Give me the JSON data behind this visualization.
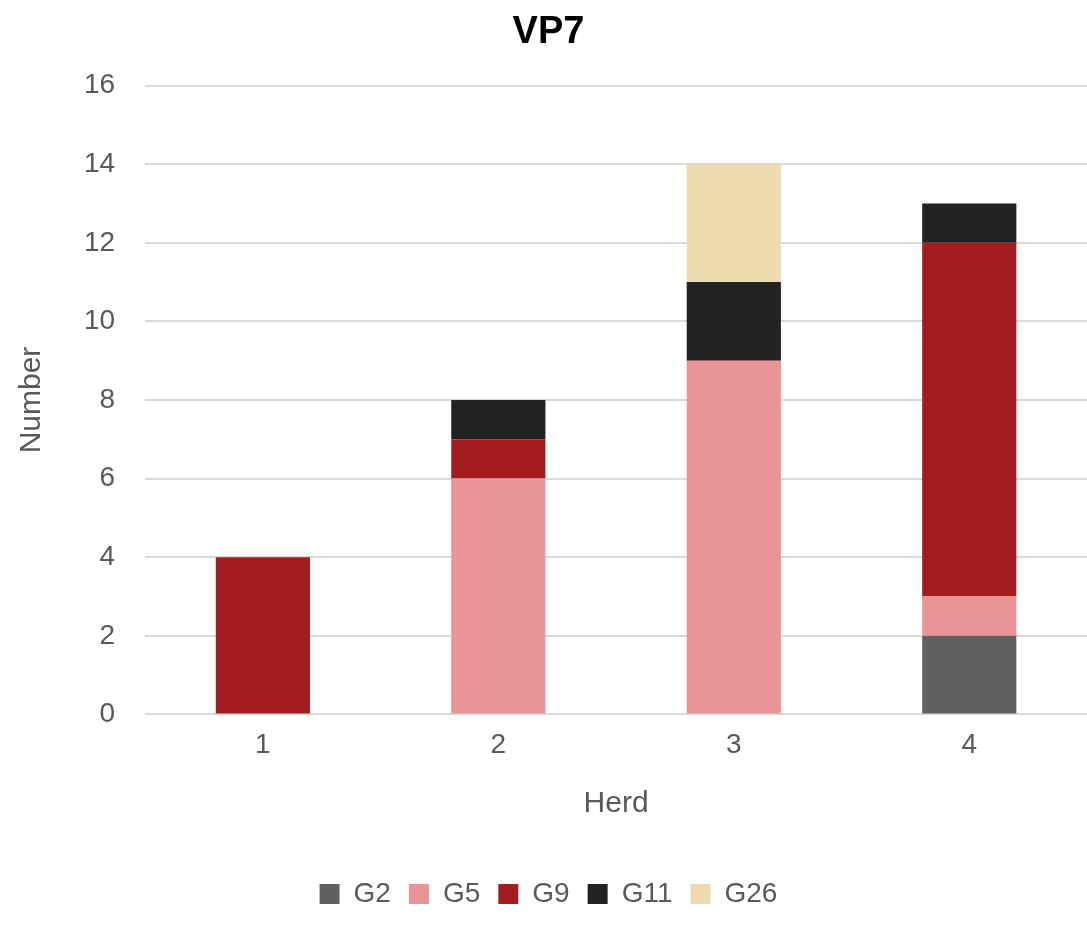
{
  "chart_data": {
    "type": "bar",
    "title": "VP7",
    "xlabel": "Herd",
    "ylabel": "Number",
    "categories": [
      "1",
      "2",
      "3",
      "4"
    ],
    "stacked": true,
    "series": [
      {
        "name": "G2",
        "color": "#606060",
        "values": [
          null,
          null,
          null,
          2
        ]
      },
      {
        "name": "G5",
        "color": "#eb9496",
        "values": [
          null,
          6,
          9,
          1
        ]
      },
      {
        "name": "G9",
        "color": "#a21c20",
        "values": [
          4,
          1,
          null,
          9
        ]
      },
      {
        "name": "G11",
        "color": "#222222",
        "values": [
          null,
          1,
          2,
          1
        ]
      },
      {
        "name": "G26",
        "color": "#efd9ae",
        "values": [
          null,
          null,
          3,
          null
        ]
      }
    ],
    "ylim": [
      0,
      16
    ],
    "yticks": [
      0,
      2,
      4,
      6,
      8,
      10,
      12,
      14,
      16
    ],
    "grid": "y",
    "legend": "bottom"
  }
}
